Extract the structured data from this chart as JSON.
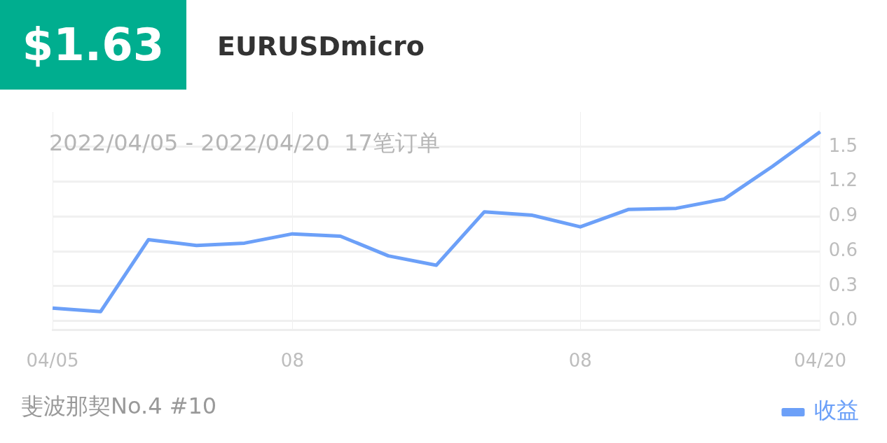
{
  "chart_data": {
    "type": "line",
    "title": "$1.63",
    "subtitle": "EURUSDmicro",
    "annotations": [
      "2022/04/05 - 2022/04/20  17笔订单",
      "斐波那契No.4 #10"
    ],
    "categories": [
      "04/05",
      null,
      null,
      null,
      null,
      "08",
      null,
      null,
      null,
      null,
      null,
      "08",
      null,
      null,
      null,
      null,
      "04/20"
    ],
    "series": [
      {
        "name": "收益",
        "color": "#6ca0f8",
        "values": [
          0.11,
          0.08,
          0.7,
          0.65,
          0.67,
          0.75,
          0.73,
          0.56,
          0.48,
          0.94,
          0.91,
          0.81,
          0.96,
          0.97,
          1.05,
          1.33,
          1.63
        ]
      }
    ],
    "ylim": [
      -0.08,
      1.8
    ],
    "yticks": [
      {
        "value": 0,
        "label": "0.0"
      },
      {
        "value": 0.3,
        "label": "0.3"
      },
      {
        "value": 0.6,
        "label": "0.6"
      },
      {
        "value": 0.9,
        "label": "0.9"
      },
      {
        "value": 1.2,
        "label": "1.2"
      },
      {
        "value": 1.5,
        "label": "1.5"
      }
    ],
    "grid": true,
    "legend": "bottom right",
    "marker": "none",
    "line_style": "solid"
  }
}
